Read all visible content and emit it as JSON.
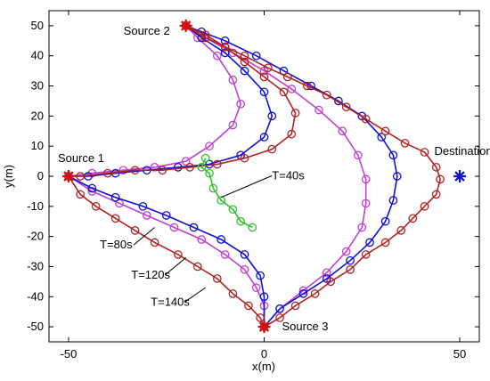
{
  "chart_data": {
    "type": "line",
    "xlabel": "x(m)",
    "ylabel": "y(m)",
    "xlim": [
      -55,
      55
    ],
    "ylim": [
      -55,
      55
    ],
    "xticks": [
      -50,
      0,
      50
    ],
    "yticks": [
      -50,
      -40,
      -30,
      -20,
      -10,
      0,
      10,
      20,
      30,
      40,
      50
    ],
    "grid": false,
    "colors": {
      "red": "#b22222",
      "blue": "#1010d0",
      "magenta": "#c040d0",
      "green": "#30c030",
      "source_marker": "#d01010",
      "destination_marker": "#1010d0"
    },
    "sources": [
      {
        "label": "Source 1",
        "x": -50,
        "y": 0
      },
      {
        "label": "Source 2",
        "x": -20,
        "y": 50
      },
      {
        "label": "Source 3",
        "x": 0,
        "y": -50
      }
    ],
    "destination": {
      "label": "Destination",
      "x": 50,
      "y": 0
    },
    "series": [
      {
        "color": "magenta",
        "points": [
          [
            -20,
            50
          ],
          [
            -17,
            46
          ],
          [
            -12,
            40
          ],
          [
            -8,
            32
          ],
          [
            -6,
            24
          ],
          [
            -8,
            17
          ],
          [
            -14,
            10
          ],
          [
            -20,
            5
          ],
          [
            -28,
            3
          ],
          [
            -36,
            2
          ],
          [
            -44,
            1
          ],
          [
            -50,
            0
          ],
          [
            -44,
            -5
          ],
          [
            -37,
            -9
          ],
          [
            -30,
            -13
          ],
          [
            -23,
            -17
          ],
          [
            -16,
            -21
          ],
          [
            -10,
            -26
          ],
          [
            -5,
            -31
          ],
          [
            -2,
            -37
          ],
          [
            0,
            -43
          ],
          [
            0,
            -50
          ],
          [
            4,
            -44
          ],
          [
            10,
            -38
          ],
          [
            16,
            -32
          ],
          [
            21,
            -25
          ],
          [
            25,
            -17
          ],
          [
            26,
            -9
          ],
          [
            26,
            -1
          ],
          [
            24,
            7
          ],
          [
            20,
            15
          ],
          [
            14,
            22
          ],
          [
            7,
            29
          ],
          [
            0,
            35
          ],
          [
            -8,
            41
          ],
          [
            -15,
            46
          ],
          [
            -20,
            50
          ]
        ]
      },
      {
        "color": "blue",
        "points": [
          [
            -20,
            50
          ],
          [
            -16,
            46
          ],
          [
            -10,
            41
          ],
          [
            -5,
            35
          ],
          [
            0,
            28
          ],
          [
            2,
            20
          ],
          [
            0,
            13
          ],
          [
            -6,
            7
          ],
          [
            -14,
            4
          ],
          [
            -22,
            3
          ],
          [
            -30,
            2
          ],
          [
            -38,
            1
          ],
          [
            -45,
            0
          ],
          [
            -50,
            0
          ],
          [
            -44,
            -4
          ],
          [
            -38,
            -7
          ],
          [
            -31,
            -10
          ],
          [
            -25,
            -13
          ],
          [
            -18,
            -17
          ],
          [
            -11,
            -21
          ],
          [
            -5,
            -26
          ],
          [
            -1,
            -33
          ],
          [
            0,
            -40
          ],
          [
            0,
            -50
          ],
          [
            4,
            -44
          ],
          [
            10,
            -39
          ],
          [
            16,
            -34
          ],
          [
            22,
            -28
          ],
          [
            27,
            -22
          ],
          [
            31,
            -15
          ],
          [
            33,
            -8
          ],
          [
            34,
            0
          ],
          [
            33,
            7
          ],
          [
            30,
            13
          ],
          [
            25,
            20
          ],
          [
            19,
            25
          ],
          [
            12,
            30
          ],
          [
            5,
            35
          ],
          [
            -2,
            40
          ],
          [
            -10,
            45
          ],
          [
            -16,
            48
          ],
          [
            -20,
            50
          ]
        ]
      },
      {
        "color": "red",
        "points": [
          [
            -20,
            50
          ],
          [
            -15,
            47
          ],
          [
            -10,
            43
          ],
          [
            -5,
            38
          ],
          [
            0,
            33
          ],
          [
            5,
            28
          ],
          [
            8,
            21
          ],
          [
            7,
            14
          ],
          [
            2,
            9
          ],
          [
            -5,
            6
          ],
          [
            -12,
            4
          ],
          [
            -19,
            3
          ],
          [
            -26,
            2
          ],
          [
            -33,
            2
          ],
          [
            -40,
            1
          ],
          [
            -47,
            0
          ],
          [
            -50,
            0
          ],
          [
            -47,
            -6
          ],
          [
            -43,
            -10
          ],
          [
            -38,
            -14
          ],
          [
            -33,
            -18
          ],
          [
            -28,
            -22
          ],
          [
            -22,
            -26
          ],
          [
            -17,
            -30
          ],
          [
            -12,
            -34
          ],
          [
            -8,
            -39
          ],
          [
            -4,
            -43
          ],
          [
            -1,
            -47
          ],
          [
            0,
            -50
          ],
          [
            4,
            -47
          ],
          [
            8,
            -43
          ],
          [
            13,
            -39
          ],
          [
            17,
            -35
          ],
          [
            22,
            -31
          ],
          [
            26,
            -26
          ],
          [
            31,
            -22
          ],
          [
            35,
            -18
          ],
          [
            38,
            -14
          ],
          [
            41,
            -10
          ],
          [
            44,
            -6
          ],
          [
            45,
            -1
          ],
          [
            44,
            3
          ],
          [
            41,
            8
          ],
          [
            36,
            11
          ],
          [
            31,
            15
          ],
          [
            26,
            19
          ],
          [
            21,
            23
          ],
          [
            16,
            27
          ],
          [
            11,
            30
          ],
          [
            6,
            33
          ],
          [
            1,
            36
          ],
          [
            -5,
            40
          ],
          [
            -10,
            43
          ],
          [
            -15,
            46
          ],
          [
            -20,
            50
          ]
        ]
      },
      {
        "color": "green",
        "points": [
          [
            -15,
            6
          ],
          [
            -16,
            3
          ],
          [
            -14,
            1
          ],
          [
            -13,
            -4
          ],
          [
            -11,
            -8
          ],
          [
            -8,
            -11
          ],
          [
            -6,
            -15
          ],
          [
            -3,
            -17
          ]
        ]
      }
    ],
    "annotations": [
      {
        "text": "T=40s",
        "text_x": 2,
        "text_y": -1,
        "to_x": -11,
        "to_y": -7
      },
      {
        "text": "T=80s",
        "text_x": -42,
        "text_y": -24,
        "to_x": -28,
        "to_y": -17
      },
      {
        "text": "T=120s",
        "text_x": -34,
        "text_y": -34,
        "to_x": -20,
        "to_y": -27
      },
      {
        "text": "T=140s",
        "text_x": -29,
        "text_y": -43,
        "to_x": -15,
        "to_y": -37
      }
    ]
  }
}
